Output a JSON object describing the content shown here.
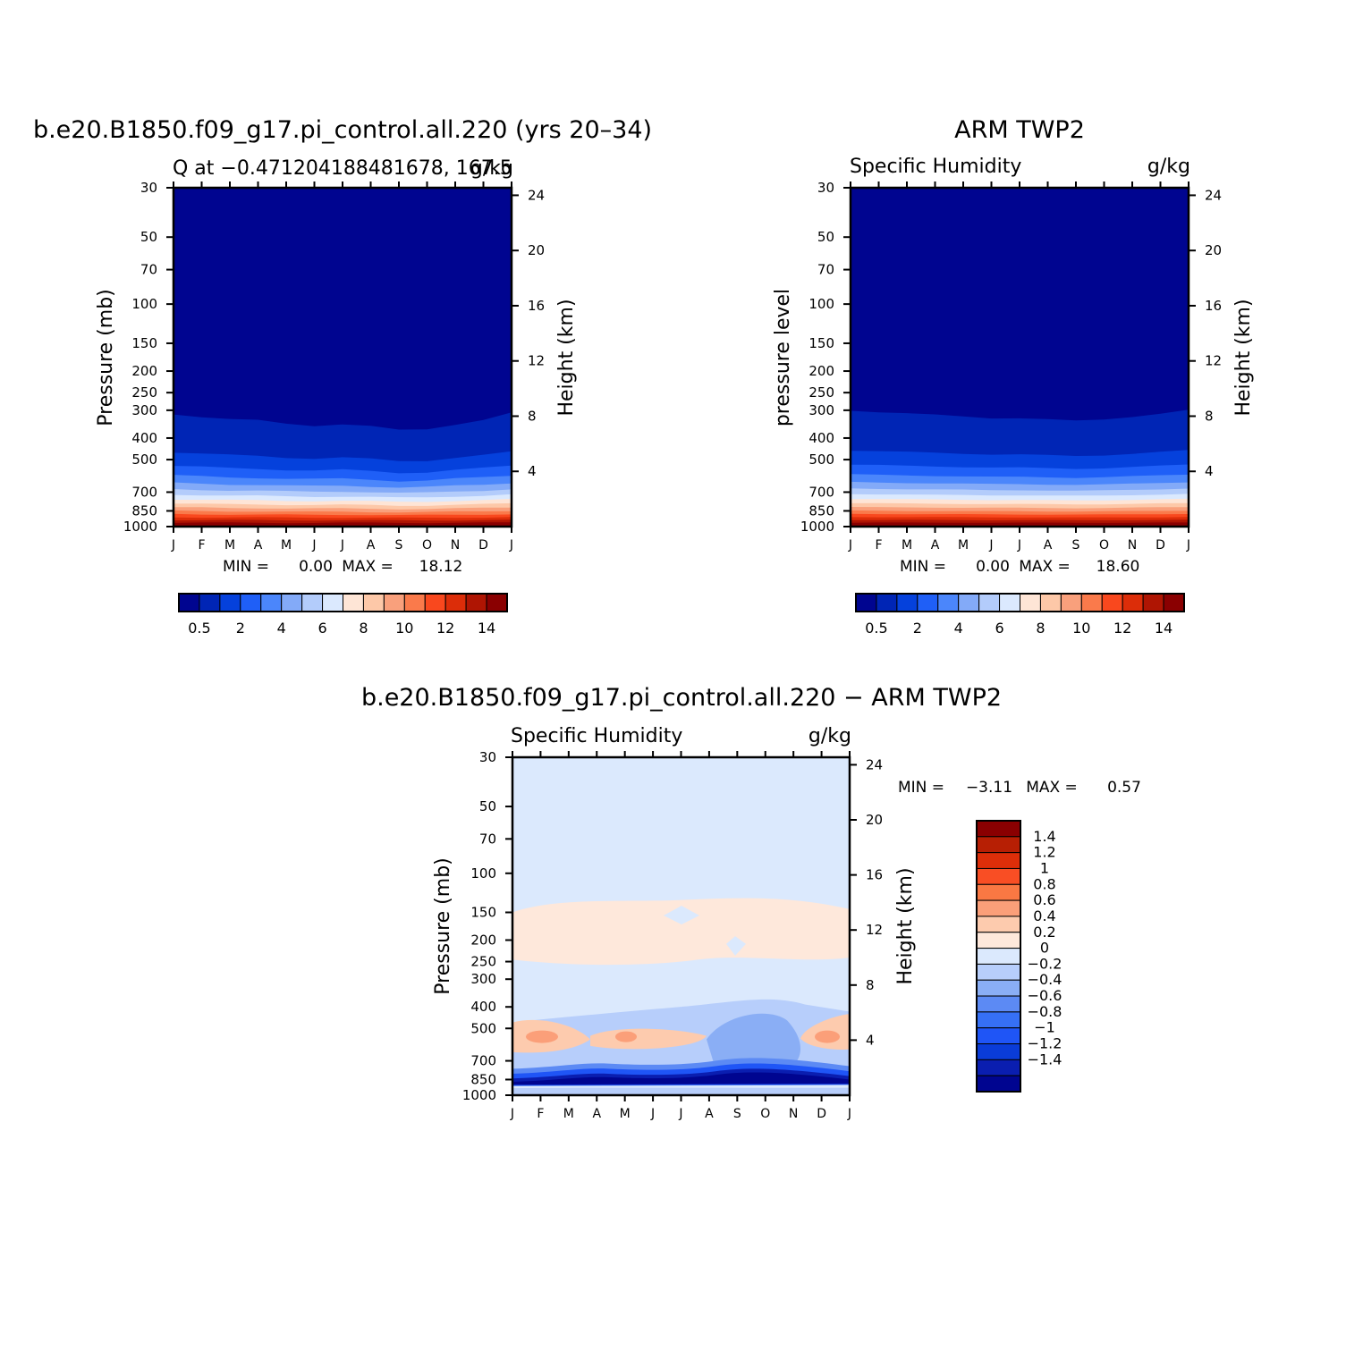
{
  "chart_data": [
    {
      "type": "heatmap",
      "title": "b.e20.B1850.f09_g17.pi_control.all.220 (yrs 20–34)",
      "left_subtitle": "Q at −0.471204188481678, 167.5",
      "units": "g/kg",
      "ylabel": "Pressure (mb)",
      "y2label": "Height (km)",
      "x_ticks": [
        "J",
        "F",
        "M",
        "A",
        "M",
        "J",
        "J",
        "A",
        "S",
        "O",
        "N",
        "D",
        "J"
      ],
      "pressure_ticks": [
        "30",
        "50",
        "70",
        "100",
        "150",
        "200",
        "250",
        "300",
        "400",
        "500",
        "700",
        "850",
        "1000"
      ],
      "height_ticks": [
        "24",
        "20",
        "16",
        "12",
        "8",
        "4"
      ],
      "min_label": "MIN =",
      "min_value": "0.00",
      "max_label": "MAX =",
      "max_value": "18.12",
      "tropopause_level_by_month": [
        310,
        320,
        330,
        335,
        345,
        350,
        345,
        355,
        370,
        365,
        345,
        330,
        310
      ],
      "colorbar_labels": [
        "0.5",
        "2",
        "4",
        "6",
        "8",
        "10",
        "12",
        "14"
      ]
    },
    {
      "type": "heatmap",
      "title": "ARM TWP2",
      "left_subtitle": "Specific Humidity",
      "units": "g/kg",
      "ylabel": "pressure level",
      "y2label": "Height (km)",
      "x_ticks": [
        "J",
        "F",
        "M",
        "A",
        "M",
        "J",
        "J",
        "A",
        "S",
        "O",
        "N",
        "D",
        "J"
      ],
      "pressure_ticks": [
        "30",
        "50",
        "70",
        "100",
        "150",
        "200",
        "250",
        "300",
        "400",
        "500",
        "700",
        "850",
        "1000"
      ],
      "height_ticks": [
        "24",
        "20",
        "16",
        "12",
        "8",
        "4"
      ],
      "min_label": "MIN =",
      "min_value": "0.00",
      "max_label": "MAX =",
      "max_value": "18.60",
      "tropopause_level_by_month": [
        300,
        305,
        310,
        315,
        320,
        325,
        325,
        330,
        335,
        330,
        320,
        310,
        300
      ],
      "colorbar_labels": [
        "0.5",
        "2",
        "4",
        "6",
        "8",
        "10",
        "12",
        "14"
      ]
    },
    {
      "type": "heatmap",
      "title": "b.e20.B1850.f09_g17.pi_control.all.220 − ARM TWP2",
      "left_subtitle": "Specific Humidity",
      "units": "g/kg",
      "ylabel": "Pressure (mb)",
      "y2label": "Height (km)",
      "x_ticks": [
        "J",
        "F",
        "M",
        "A",
        "M",
        "J",
        "J",
        "A",
        "S",
        "O",
        "N",
        "D",
        "J"
      ],
      "pressure_ticks": [
        "30",
        "50",
        "70",
        "100",
        "150",
        "200",
        "250",
        "300",
        "400",
        "500",
        "700",
        "850",
        "1000"
      ],
      "height_ticks": [
        "24",
        "20",
        "16",
        "12",
        "8",
        "4"
      ],
      "min_label": "MIN =",
      "min_value": "−3.11",
      "max_label": "MAX =",
      "max_value": "0.57",
      "colorbar_labels": [
        "1.4",
        "1.2",
        "1",
        "0.8",
        "0.6",
        "0.4",
        "0.2",
        "0",
        "−0.2",
        "−0.4",
        "−0.6",
        "−0.8",
        "−1",
        "−1.2",
        "−1.4"
      ]
    }
  ],
  "colors": {
    "moisture_levels": [
      "#000590",
      "#0025b5",
      "#0541dc",
      "#1f5ff7",
      "#4b86fb",
      "#83aaf8",
      "#b3ccfb",
      "#dbe9fe",
      "#fee5d6",
      "#fdc8a8",
      "#f9a07c",
      "#fa7a4b",
      "#f9481e",
      "#dc2d09",
      "#af1503",
      "#8a0001"
    ],
    "difference_levels": [
      "#000590",
      "#0a1eb0",
      "#0a3cd8",
      "#1f55f6",
      "#3670f5",
      "#5c8af4",
      "#8aaef5",
      "#b7cefb",
      "#dbe9fd",
      "#fee8db",
      "#fdcbae",
      "#fb9f79",
      "#fa7843",
      "#f94e24",
      "#dd2e09",
      "#b71f04",
      "#8a0001"
    ]
  }
}
